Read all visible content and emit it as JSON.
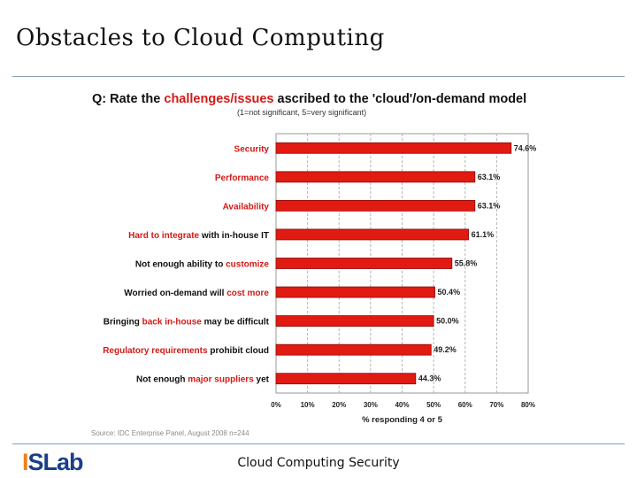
{
  "slide": {
    "title": "Obstacles to Cloud Computing",
    "footer": "Cloud Computing Security",
    "logo": {
      "prefix": "I",
      "text": "SLab"
    }
  },
  "colors": {
    "bar": "#e11b12",
    "bar_edge": "#8a0a07",
    "label_accent": "#d21a16",
    "label_plain": "#101010",
    "rule": "#7f9fb3",
    "logo_orange": "#f07e1b",
    "logo_blue": "#1b3f86"
  },
  "chart_data": {
    "type": "bar",
    "orientation": "horizontal",
    "title_parts": [
      {
        "text": "Q: Rate the ",
        "accent": false
      },
      {
        "text": "challenges/issues",
        "accent": true
      },
      {
        "text": " ascribed to the 'cloud'/on-demand model",
        "accent": false
      }
    ],
    "subtitle": "(1=not significant, 5=very significant)",
    "categories": [
      {
        "parts": [
          {
            "text": "Security",
            "accent": true
          }
        ]
      },
      {
        "parts": [
          {
            "text": "Performance",
            "accent": true
          }
        ]
      },
      {
        "parts": [
          {
            "text": "Availability",
            "accent": true
          }
        ]
      },
      {
        "parts": [
          {
            "text": "Hard to integrate",
            "accent": true
          },
          {
            "text": " with in-house IT",
            "accent": false
          }
        ]
      },
      {
        "parts": [
          {
            "text": "Not enough ability to ",
            "accent": false
          },
          {
            "text": "customize",
            "accent": true
          }
        ]
      },
      {
        "parts": [
          {
            "text": "Worried on-demand will ",
            "accent": false
          },
          {
            "text": "cost more",
            "accent": true
          }
        ]
      },
      {
        "parts": [
          {
            "text": "Bringing ",
            "accent": false
          },
          {
            "text": "back in-house",
            "accent": true
          },
          {
            "text": " may be difficult",
            "accent": false
          }
        ]
      },
      {
        "parts": [
          {
            "text": "Regulatory requirements",
            "accent": true
          },
          {
            "text": " prohibit cloud",
            "accent": false
          }
        ]
      },
      {
        "parts": [
          {
            "text": "Not enough ",
            "accent": false
          },
          {
            "text": "major suppliers",
            "accent": true
          },
          {
            "text": " yet",
            "accent": false
          }
        ]
      }
    ],
    "values": [
      74.6,
      63.1,
      63.1,
      61.1,
      55.8,
      50.4,
      50.0,
      49.2,
      44.3
    ],
    "value_labels": [
      "74.6%",
      "63.1%",
      "63.1%",
      "61.1%",
      "55.8%",
      "50.4%",
      "50.0%",
      "49.2%",
      "44.3%"
    ],
    "xlim": [
      0,
      80
    ],
    "xticks": [
      0,
      10,
      20,
      30,
      40,
      50,
      60,
      70,
      80
    ],
    "xtick_labels": [
      "0%",
      "10%",
      "20%",
      "30%",
      "40%",
      "50%",
      "60%",
      "70%",
      "80%"
    ],
    "xlabel": "% responding 4 or 5",
    "source": "Source: IDC Enterprise Panel, August 2008 n=244",
    "grid": "vertical dashed"
  }
}
